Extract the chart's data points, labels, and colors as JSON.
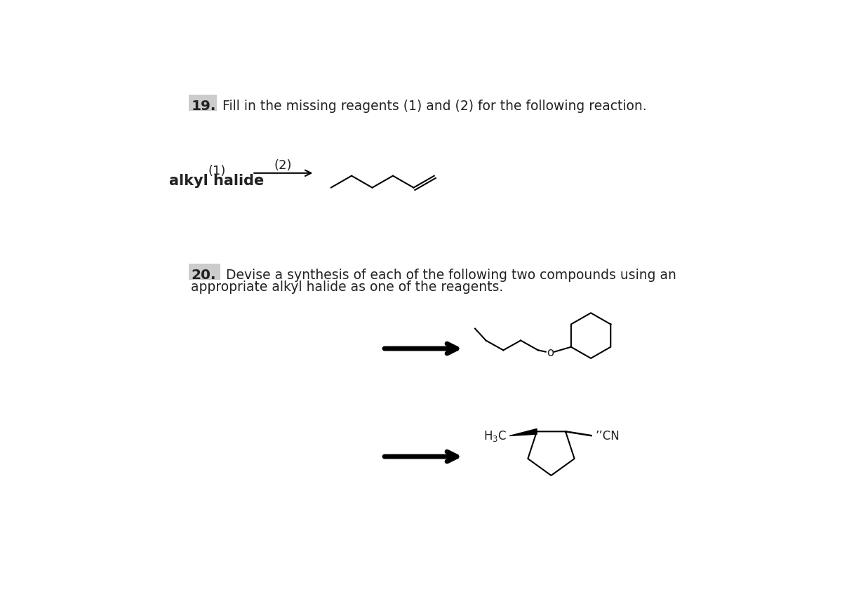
{
  "title19": "19.",
  "text19": "Fill in the missing reagents (1) and (2) for the following reaction.",
  "label1": "(1)",
  "label2": "(2)",
  "label_alkyl": "alkyl halide",
  "title20": "20.",
  "text20a": "Devise a synthesis of each of the following two compounds using an",
  "text20b": "appropriate alkyl halide as one of the reagents.",
  "background": "#ffffff",
  "text_color": "#222222",
  "line_color": "#000000",
  "box_color": "#cccccc",
  "fontsize_body": 13.5,
  "fontsize_bold": 14.5
}
